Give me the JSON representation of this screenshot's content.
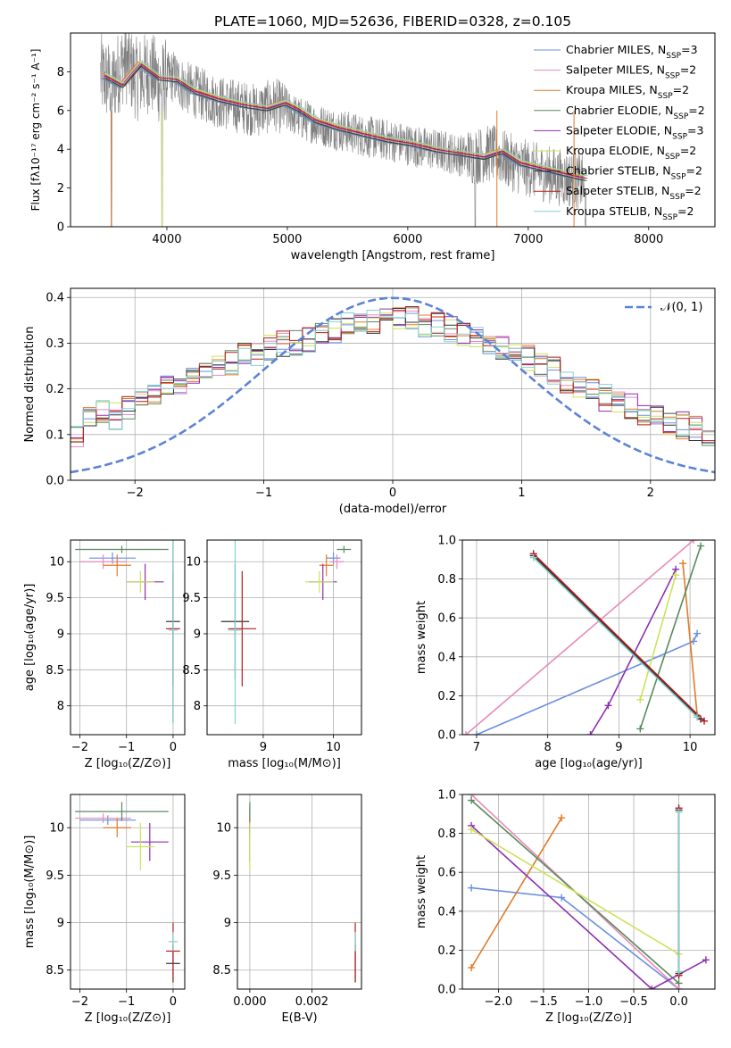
{
  "figure": {
    "title": "PLATE=1060, MJD=52636, FIBERID=0328, z=0.105"
  },
  "colors": {
    "spectrum": "#7f7f7f",
    "gauss": "#5b84d6",
    "models": [
      "#6a8fe0",
      "#e88bb9",
      "#e07b2a",
      "#5a8a5f",
      "#8e2fb0",
      "#cce35a",
      "#333333",
      "#b81b1b",
      "#86d1d1"
    ]
  },
  "chart_data": [
    {
      "type": "line",
      "id": "spectrum",
      "xlabel": "wavelength [Angstrom, rest frame]",
      "ylabel": "Flux [fλ10⁻¹⁷ erg cm⁻² s⁻¹ A⁻¹]",
      "xlim": [
        3200,
        8550
      ],
      "ylim": [
        0,
        10
      ],
      "xticks": [
        4000,
        5000,
        6000,
        7000,
        8000
      ],
      "yticks": [
        0,
        2,
        4,
        6,
        8
      ],
      "grid": false,
      "legend_position": "top-right",
      "spectrum_points": [
        [
          3450,
          7.8
        ],
        [
          3550,
          7.4
        ],
        [
          3650,
          8.6
        ],
        [
          3750,
          7.6
        ],
        [
          3850,
          8.0
        ],
        [
          3950,
          7.4
        ],
        [
          4050,
          7.8
        ],
        [
          4150,
          7.2
        ],
        [
          4300,
          6.8
        ],
        [
          4450,
          6.4
        ],
        [
          4600,
          6.2
        ],
        [
          4750,
          6.0
        ],
        [
          4900,
          6.3
        ],
        [
          5000,
          6.0
        ],
        [
          5100,
          5.6
        ],
        [
          5300,
          5.2
        ],
        [
          5500,
          4.9
        ],
        [
          5700,
          4.6
        ],
        [
          5900,
          4.4
        ],
        [
          6100,
          4.1
        ],
        [
          6300,
          3.9
        ],
        [
          6500,
          3.6
        ],
        [
          6700,
          3.8
        ],
        [
          6900,
          3.2
        ],
        [
          7100,
          2.8
        ],
        [
          7300,
          2.5
        ],
        [
          7450,
          2.3
        ],
        [
          7500,
          0.0
        ]
      ],
      "model_points": [
        [
          3450,
          7.8
        ],
        [
          3600,
          7.3
        ],
        [
          3750,
          8.4
        ],
        [
          3900,
          7.7
        ],
        [
          4050,
          7.6
        ],
        [
          4200,
          7.0
        ],
        [
          4400,
          6.6
        ],
        [
          4600,
          6.3
        ],
        [
          4800,
          6.1
        ],
        [
          4950,
          6.4
        ],
        [
          5050,
          6.1
        ],
        [
          5200,
          5.5
        ],
        [
          5400,
          5.1
        ],
        [
          5600,
          4.8
        ],
        [
          5800,
          4.5
        ],
        [
          6000,
          4.3
        ],
        [
          6200,
          4.0
        ],
        [
          6400,
          3.8
        ],
        [
          6600,
          3.6
        ],
        [
          6750,
          3.9
        ],
        [
          6900,
          3.3
        ],
        [
          7100,
          3.0
        ],
        [
          7300,
          2.7
        ],
        [
          7450,
          2.5
        ]
      ],
      "series": [
        {
          "name": "Chabrier MILES, N",
          "sub": "SSP",
          "suffix": "=3"
        },
        {
          "name": "Salpeter MILES, N",
          "sub": "SSP",
          "suffix": "=2"
        },
        {
          "name": "Kroupa MILES, N",
          "sub": "SSP",
          "suffix": "=2"
        },
        {
          "name": "Chabrier ELODIE, N",
          "sub": "SSP",
          "suffix": "=2"
        },
        {
          "name": "Salpeter ELODIE, N",
          "sub": "SSP",
          "suffix": "=3"
        },
        {
          "name": "Kroupa ELODIE, N",
          "sub": "SSP",
          "suffix": "=2"
        },
        {
          "name": "Chabrier STELIB, N",
          "sub": "SSP",
          "suffix": "=2"
        },
        {
          "name": "Salpeter STELIB, N",
          "sub": "SSP",
          "suffix": "=2"
        },
        {
          "name": "Kroupa STELIB, N",
          "sub": "SSP",
          "suffix": "=2"
        }
      ]
    },
    {
      "type": "histogram",
      "id": "residuals",
      "xlabel": "(data-model)/error",
      "ylabel": "Normed distribution",
      "xlim": [
        -2.5,
        2.5
      ],
      "ylim": [
        0,
        0.42
      ],
      "xticks": [
        -2,
        -1,
        0,
        1,
        2
      ],
      "yticks": [
        0.0,
        0.1,
        0.2,
        0.3,
        0.4
      ],
      "grid": true,
      "legend_position": "top-right",
      "gauss_label": "𝒩(0, 1)",
      "bin_width": 0.1,
      "hist_profile": [
        0.05,
        0.06,
        0.07,
        0.08,
        0.09,
        0.1,
        0.13,
        0.15,
        0.14,
        0.16,
        0.18,
        0.19,
        0.2,
        0.21,
        0.22,
        0.24,
        0.25,
        0.26,
        0.27,
        0.28,
        0.29,
        0.3,
        0.3,
        0.31,
        0.32,
        0.33,
        0.34,
        0.35,
        0.35,
        0.36,
        0.36,
        0.35,
        0.34,
        0.34,
        0.33,
        0.32,
        0.31,
        0.3,
        0.29,
        0.28,
        0.27,
        0.25,
        0.24,
        0.22,
        0.21,
        0.2,
        0.18,
        0.17,
        0.16,
        0.15,
        0.14,
        0.13,
        0.12,
        0.11,
        0.1,
        0.09,
        0.08,
        0.07,
        0.06,
        0.05
      ]
    },
    {
      "type": "scatter",
      "id": "age-vs-z",
      "xlabel": "Z [log₁₀(Z/Z⊙)]",
      "ylabel": "age  [log₁₀(age/yr)]",
      "xlim": [
        -2.2,
        0.25
      ],
      "ylim": [
        7.6,
        10.3
      ],
      "xticks": [
        -2,
        -1,
        0
      ],
      "yticks": [
        8.0,
        8.5,
        9.0,
        9.5,
        10.0
      ],
      "grid": true,
      "points": [
        {
          "x": -1.3,
          "y": 10.05,
          "xerr": 0.5,
          "yerr": 0.08
        },
        {
          "x": -1.5,
          "y": 10.0,
          "xerr": 0.5,
          "yerr": 0.1
        },
        {
          "x": -1.2,
          "y": 9.95,
          "xerr": 0.3,
          "yerr": 0.15
        },
        {
          "x": -1.1,
          "y": 10.17,
          "xerr": 1.0,
          "yerr": 0.05
        },
        {
          "x": -0.6,
          "y": 9.72,
          "xerr": 0.4,
          "yerr": 0.25
        },
        {
          "x": -0.7,
          "y": 9.72,
          "xerr": 0.3,
          "yerr": 0.15
        },
        {
          "x": 0.0,
          "y": 9.17,
          "xerr": 0.15,
          "yerr": 1.4
        },
        {
          "x": 0.0,
          "y": 9.07,
          "xerr": 0.15,
          "yerr": 0.8
        },
        {
          "x": 0.0,
          "y": 9.05,
          "xerr": 0.1,
          "yerr": 1.3
        }
      ]
    },
    {
      "type": "scatter",
      "id": "age-vs-mass",
      "xlabel": "mass [log₁₀(M/M⊙)]",
      "ylabel": "",
      "xlim": [
        8.2,
        10.4
      ],
      "ylim": [
        7.6,
        10.3
      ],
      "xticks": [
        9,
        10
      ],
      "yticks": [
        8.0,
        8.5,
        9.0,
        9.5,
        10.0
      ],
      "grid": true,
      "points": [
        {
          "x": 10.0,
          "y": 10.05,
          "xerr": 0.1,
          "yerr": 0.08
        },
        {
          "x": 10.05,
          "y": 10.0,
          "xerr": 0.1,
          "yerr": 0.1
        },
        {
          "x": 9.9,
          "y": 9.95,
          "xerr": 0.1,
          "yerr": 0.15
        },
        {
          "x": 10.15,
          "y": 10.17,
          "xerr": 0.1,
          "yerr": 0.05
        },
        {
          "x": 9.85,
          "y": 9.72,
          "xerr": 0.2,
          "yerr": 0.25
        },
        {
          "x": 9.8,
          "y": 9.72,
          "xerr": 0.2,
          "yerr": 0.15
        },
        {
          "x": 8.6,
          "y": 9.17,
          "xerr": 0.2,
          "yerr": 0.8
        },
        {
          "x": 8.7,
          "y": 9.07,
          "xerr": 0.2,
          "yerr": 0.8
        },
        {
          "x": 8.6,
          "y": 9.05,
          "xerr": 0.1,
          "yerr": 1.3
        }
      ]
    },
    {
      "type": "line",
      "id": "weight-vs-age",
      "xlabel": "age  [log₁₀(age/yr)]",
      "ylabel": "mass weight",
      "xlim": [
        6.8,
        10.35
      ],
      "ylim": [
        0,
        1
      ],
      "xticks": [
        7,
        8,
        9,
        10
      ],
      "yticks": [
        0.0,
        0.2,
        0.4,
        0.6,
        0.8,
        1.0
      ],
      "grid": true,
      "series": [
        {
          "x": [
            7.0,
            10.05,
            10.1
          ],
          "y": [
            0.0,
            0.48,
            0.52
          ]
        },
        {
          "x": [
            6.85,
            10.05
          ],
          "y": [
            0.0,
            1.0
          ]
        },
        {
          "x": [
            9.9,
            10.1
          ],
          "y": [
            0.88,
            0.1
          ]
        },
        {
          "x": [
            9.3,
            10.15
          ],
          "y": [
            0.03,
            0.97
          ]
        },
        {
          "x": [
            8.6,
            8.85,
            9.8
          ],
          "y": [
            0.0,
            0.15,
            0.85
          ]
        },
        {
          "x": [
            9.3,
            9.8
          ],
          "y": [
            0.18,
            0.82
          ]
        },
        {
          "x": [
            7.8,
            10.15
          ],
          "y": [
            0.92,
            0.08
          ]
        },
        {
          "x": [
            7.8,
            10.2
          ],
          "y": [
            0.93,
            0.07
          ]
        },
        {
          "x": [
            7.8,
            10.1
          ],
          "y": [
            0.91,
            0.09
          ]
        }
      ]
    },
    {
      "type": "scatter",
      "id": "mass-vs-z",
      "xlabel": "Z [log₁₀(Z/Z⊙)]",
      "ylabel": "mass [log₁₀(M/M⊙)]",
      "xlim": [
        -2.2,
        0.25
      ],
      "ylim": [
        8.3,
        10.35
      ],
      "xticks": [
        -2,
        -1,
        0
      ],
      "yticks": [
        8.5,
        9.0,
        9.5,
        10.0
      ],
      "grid": true,
      "points": [
        {
          "x": -1.4,
          "y": 10.08,
          "xerr": 0.6,
          "yerr": 0.05
        },
        {
          "x": -1.5,
          "y": 10.1,
          "xerr": 0.6,
          "yerr": 0.05
        },
        {
          "x": -1.2,
          "y": 10.0,
          "xerr": 0.3,
          "yerr": 0.1
        },
        {
          "x": -1.1,
          "y": 10.17,
          "xerr": 1.0,
          "yerr": 0.1
        },
        {
          "x": -0.5,
          "y": 9.85,
          "xerr": 0.4,
          "yerr": 0.2
        },
        {
          "x": -0.7,
          "y": 9.8,
          "xerr": 0.3,
          "yerr": 0.25
        },
        {
          "x": 0.0,
          "y": 8.57,
          "xerr": 0.15,
          "yerr": 0.2
        },
        {
          "x": 0.0,
          "y": 8.7,
          "xerr": 0.15,
          "yerr": 0.3
        },
        {
          "x": 0.0,
          "y": 8.8,
          "xerr": 0.1,
          "yerr": 0.1
        }
      ]
    },
    {
      "type": "scatter",
      "id": "mass-vs-ebv",
      "xlabel": "E(B-V)",
      "ylabel": "",
      "xlim": [
        -0.0004,
        0.0036
      ],
      "ylim": [
        8.3,
        10.35
      ],
      "xticks": [
        0.0,
        0.002
      ],
      "xtick_labels": [
        "0.000",
        "0.002"
      ],
      "yticks": [
        8.5,
        9.0,
        9.5,
        10.0
      ],
      "grid": true,
      "points": [
        {
          "x": 0.0,
          "y": 10.08,
          "yerr": 0.15
        },
        {
          "x": 0.0,
          "y": 10.1,
          "yerr": 0.1
        },
        {
          "x": 0.0,
          "y": 10.0,
          "yerr": 0.1
        },
        {
          "x": 0.0,
          "y": 10.17,
          "yerr": 0.1
        },
        {
          "x": 0.0,
          "y": 9.85,
          "yerr": 0.2
        },
        {
          "x": 0.0,
          "y": 9.8,
          "yerr": 0.25
        },
        {
          "x": 0.0034,
          "y": 8.57,
          "yerr": 0.2
        },
        {
          "x": 0.0034,
          "y": 8.7,
          "yerr": 0.3
        },
        {
          "x": 0.0034,
          "y": 8.8,
          "yerr": 0.1
        }
      ]
    },
    {
      "type": "line",
      "id": "weight-vs-z",
      "xlabel": "Z [log₁₀(Z/Z⊙)]",
      "ylabel": "mass weight",
      "xlim": [
        -2.4,
        0.4
      ],
      "ylim": [
        0,
        1
      ],
      "xticks": [
        -2.0,
        -1.5,
        -1.0,
        -0.5,
        0.0
      ],
      "xtick_labels": [
        "−2.0",
        "−1.5",
        "−1.0",
        "−0.5",
        "0.0"
      ],
      "yticks": [
        0.0,
        0.2,
        0.4,
        0.6,
        0.8,
        1.0
      ],
      "grid": true,
      "series": [
        {
          "x": [
            -2.3,
            -1.3,
            0.0
          ],
          "y": [
            0.52,
            0.47,
            0.0
          ]
        },
        {
          "x": [
            -2.3,
            0.0
          ],
          "y": [
            1.0,
            0.0
          ]
        },
        {
          "x": [
            -2.3,
            -1.3
          ],
          "y": [
            0.11,
            0.88
          ]
        },
        {
          "x": [
            -2.3,
            0.0
          ],
          "y": [
            0.97,
            0.03
          ]
        },
        {
          "x": [
            -2.3,
            -0.3,
            0.3
          ],
          "y": [
            0.84,
            0.0,
            0.15
          ]
        },
        {
          "x": [
            -2.3,
            0.0
          ],
          "y": [
            0.82,
            0.18
          ]
        },
        {
          "x": [
            0.0,
            0.0
          ],
          "y": [
            0.92,
            0.08
          ]
        },
        {
          "x": [
            0.0,
            0.0
          ],
          "y": [
            0.93,
            0.07
          ]
        },
        {
          "x": [
            0.0,
            0.0
          ],
          "y": [
            0.91,
            0.09
          ]
        }
      ]
    }
  ]
}
